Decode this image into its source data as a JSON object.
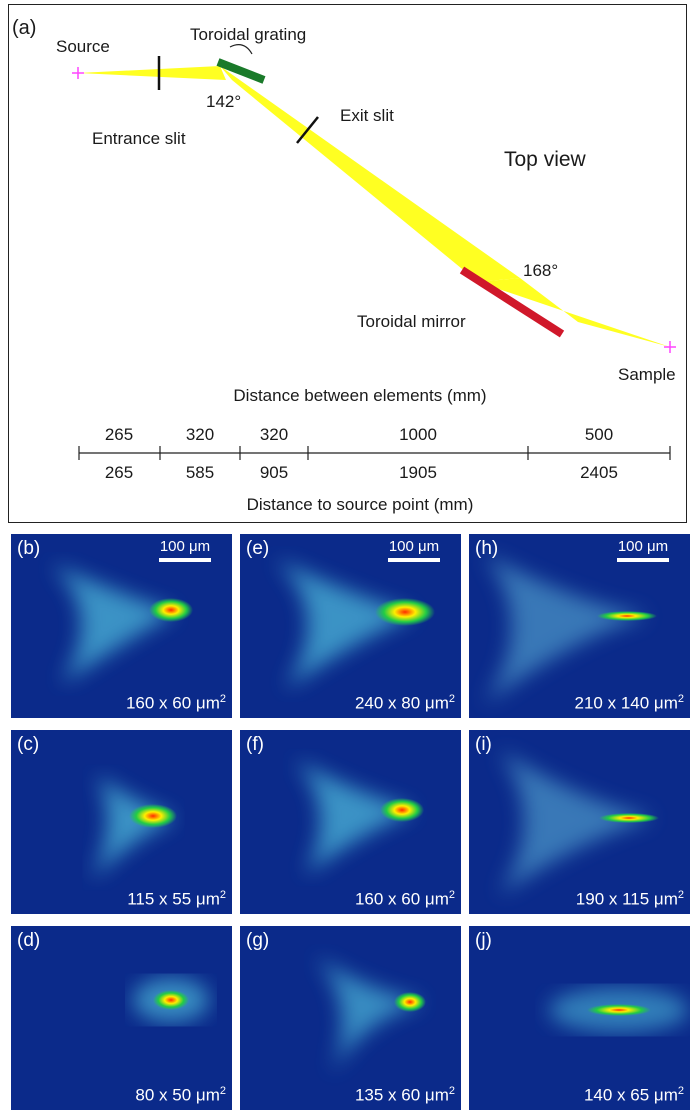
{
  "top_diagram": {
    "panel_label": "(a)",
    "view_label": "Top view",
    "elements": {
      "source": "Source",
      "entrance_slit": "Entrance slit",
      "grating": "Toroidal grating",
      "grating_angle": "142°",
      "exit_slit": "Exit slit",
      "mirror": "Toroidal mirror",
      "mirror_angle": "168°",
      "sample": "Sample"
    },
    "colors": {
      "beam": "#ffff22",
      "grating": "#1a7a2a",
      "mirror": "#d0182a",
      "point": "#ff44ff"
    },
    "distance_axis": {
      "top_title": "Distance between elements (mm)",
      "bottom_title": "Distance to source point (mm)",
      "between": [
        "265",
        "320",
        "320",
        "1000",
        "500"
      ],
      "cumulative": [
        "265",
        "585",
        "905",
        "1905",
        "2405"
      ]
    }
  },
  "panels": [
    {
      "letter": "(b)",
      "dim": "160 x 60 μm",
      "scalebar": "100 μm"
    },
    {
      "letter": "(e)",
      "dim": "240 x 80 μm",
      "scalebar": "100 μm"
    },
    {
      "letter": "(h)",
      "dim": "210 x 140 μm",
      "scalebar": "100 μm"
    },
    {
      "letter": "(c)",
      "dim": "115 x 55 μm",
      "scalebar": ""
    },
    {
      "letter": "(f)",
      "dim": "160 x 60 μm",
      "scalebar": ""
    },
    {
      "letter": "(i)",
      "dim": "190 x 115 μm",
      "scalebar": ""
    },
    {
      "letter": "(d)",
      "dim": "80 x 50 μm",
      "scalebar": ""
    },
    {
      "letter": "(g)",
      "dim": "135 x 60 μm",
      "scalebar": ""
    },
    {
      "letter": "(j)",
      "dim": "140 x 65 μm",
      "scalebar": ""
    }
  ],
  "dim_exponent": "2"
}
